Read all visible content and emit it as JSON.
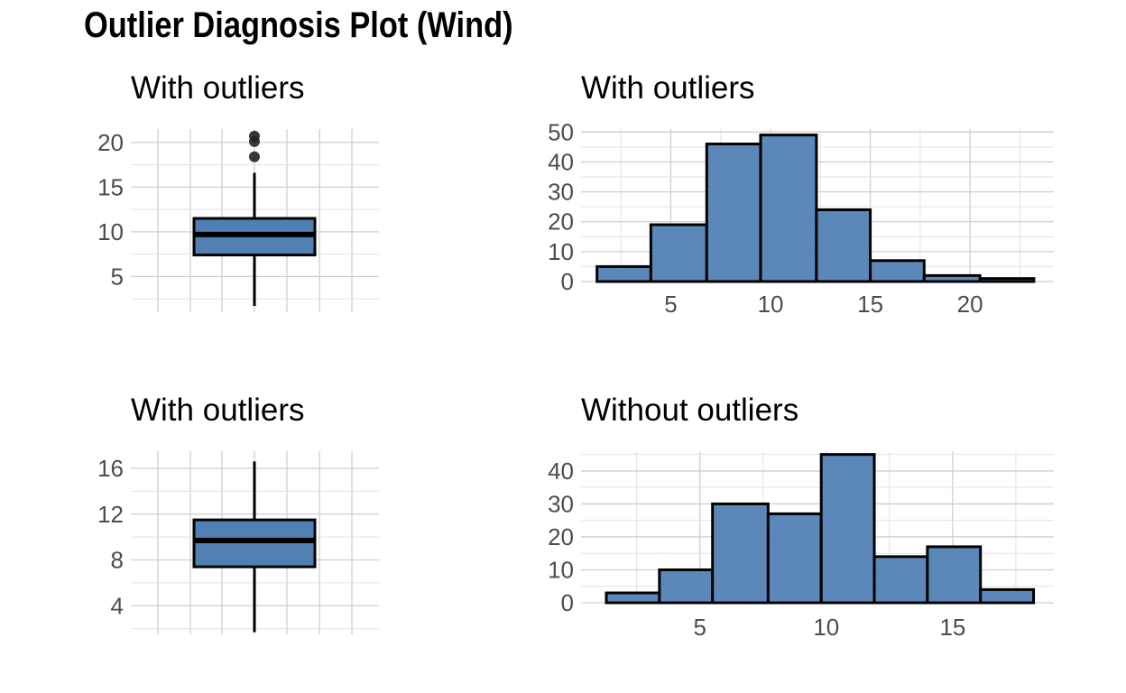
{
  "title": "Outlier Diagnosis Plot (Wind)",
  "colors": {
    "fill": "#4f7fb3",
    "stroke": "#000000",
    "outlier": "#222222",
    "grid": "#cfcfcf"
  },
  "chart_data": [
    {
      "type": "boxplot",
      "title": "With outliers",
      "yticks": [
        "5",
        "10",
        "15",
        "20"
      ],
      "ylim": [
        1.0,
        21.5
      ],
      "box": {
        "min": 1.7,
        "q1": 7.4,
        "median": 9.7,
        "q3": 11.5,
        "max": 16.6,
        "outliers": [
          18.4,
          20.1,
          20.7
        ]
      }
    },
    {
      "type": "bar",
      "title": "With outliers",
      "xticks": [
        "5",
        "10",
        "15",
        "20"
      ],
      "yticks": [
        "0",
        "10",
        "20",
        "30",
        "40",
        "50"
      ],
      "xlim": [
        0.5,
        24.2
      ],
      "ylim": [
        0,
        51
      ],
      "bins": [
        {
          "x0": 1.3,
          "x1": 4.0,
          "count": 5
        },
        {
          "x0": 4.0,
          "x1": 6.8,
          "count": 19
        },
        {
          "x0": 6.8,
          "x1": 9.5,
          "count": 46
        },
        {
          "x0": 9.5,
          "x1": 12.3,
          "count": 49
        },
        {
          "x0": 12.3,
          "x1": 15.0,
          "count": 24
        },
        {
          "x0": 15.0,
          "x1": 17.7,
          "count": 7
        },
        {
          "x0": 17.7,
          "x1": 20.5,
          "count": 2
        },
        {
          "x0": 20.5,
          "x1": 23.2,
          "count": 1
        }
      ]
    },
    {
      "type": "boxplot",
      "title": "With outliers",
      "yticks": [
        "4",
        "8",
        "12",
        "16"
      ],
      "ylim": [
        1.5,
        17.5
      ],
      "box": {
        "min": 1.7,
        "q1": 7.4,
        "median": 9.7,
        "q3": 11.5,
        "max": 16.6,
        "outliers": []
      }
    },
    {
      "type": "bar",
      "title": "Without outliers",
      "xticks": [
        "5",
        "10",
        "15"
      ],
      "yticks": [
        "0",
        "10",
        "20",
        "30",
        "40"
      ],
      "xlim": [
        0.3,
        19.0
      ],
      "ylim": [
        0,
        46
      ],
      "bins": [
        {
          "x0": 1.3,
          "x1": 3.4,
          "count": 3
        },
        {
          "x0": 3.4,
          "x1": 5.5,
          "count": 10
        },
        {
          "x0": 5.5,
          "x1": 7.7,
          "count": 30
        },
        {
          "x0": 7.7,
          "x1": 9.8,
          "count": 27
        },
        {
          "x0": 9.8,
          "x1": 11.9,
          "count": 45
        },
        {
          "x0": 11.9,
          "x1": 14.0,
          "count": 14
        },
        {
          "x0": 14.0,
          "x1": 16.1,
          "count": 17
        },
        {
          "x0": 16.1,
          "x1": 18.2,
          "count": 4
        }
      ]
    }
  ]
}
